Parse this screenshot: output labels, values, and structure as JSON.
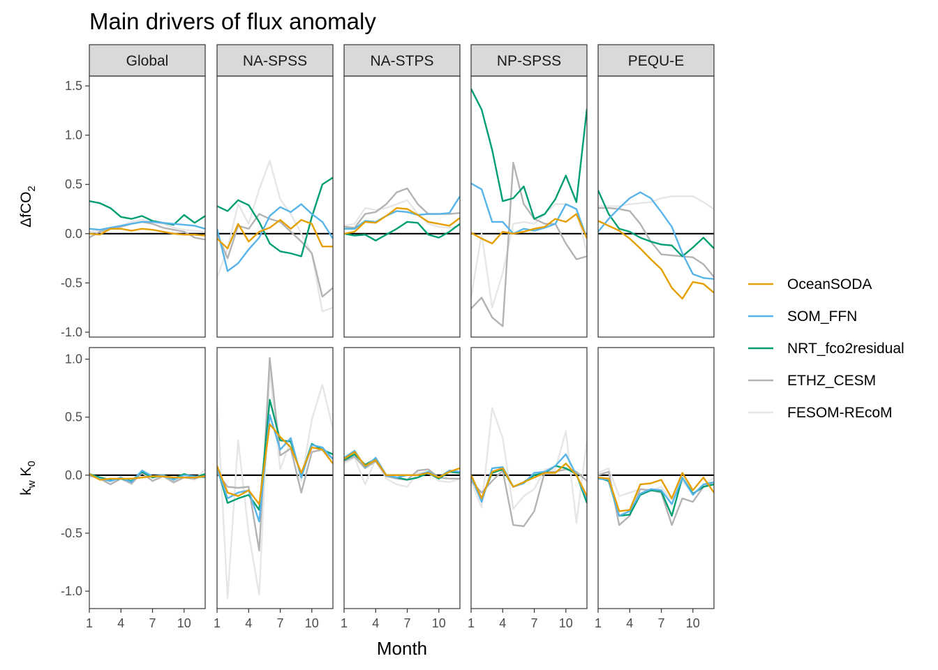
{
  "chart_data": {
    "type": "line",
    "title": "Main drivers of flux anomaly",
    "xlabel": "Month",
    "x": [
      1,
      2,
      3,
      4,
      5,
      6,
      7,
      8,
      9,
      10,
      11,
      12
    ],
    "xticks": [
      1,
      4,
      7,
      10
    ],
    "xlim": [
      1,
      12
    ],
    "panels": [
      "Global",
      "NA-SPSS",
      "NA-STPS",
      "NP-SPSS",
      "PEQU-E"
    ],
    "rows": [
      {
        "id": "dfco2",
        "ylabel": "ΔfCO",
        "ylabel_sub": "2",
        "ylim": [
          -1.05,
          1.6
        ],
        "yticks": [
          -1.0,
          -0.5,
          0.0,
          0.5,
          1.0,
          1.5
        ],
        "ytick_labels": [
          "-1.0",
          "-0.5",
          "0.0",
          "0.5",
          "1.0",
          "1.5"
        ]
      },
      {
        "id": "kwk0",
        "ylabel": "k",
        "ylabel_sub": "w",
        "ylabel2": " K",
        "ylabel_sub2": "0",
        "ylim": [
          -1.15,
          1.1
        ],
        "yticks": [
          -1.0,
          -0.5,
          0.0,
          0.5,
          1.0
        ],
        "ytick_labels": [
          "-1.0",
          "-0.5",
          "0.0",
          "0.5",
          "1.0"
        ]
      }
    ],
    "series_colors": {
      "OceanSODA": "#E69F00",
      "SOM_FFN": "#56B4E9",
      "NRT_fco2residual": "#009E73",
      "ETHZ_CESM": "#B3B3B3",
      "FESOM-REcoM": "#E6E6E6"
    },
    "legend": [
      "OceanSODA",
      "SOM_FFN",
      "NRT_fco2residual",
      "ETHZ_CESM",
      "FESOM-REcoM"
    ],
    "legend_position": "right",
    "data": {
      "dfco2": {
        "Global": {
          "OceanSODA": [
            0.0,
            -0.01,
            0.05,
            0.05,
            0.03,
            0.05,
            0.04,
            0.02,
            0.0,
            -0.01,
            -0.01,
            -0.02
          ],
          "SOM_FFN": [
            0.05,
            0.04,
            0.06,
            0.08,
            0.1,
            0.12,
            0.12,
            0.11,
            0.1,
            0.09,
            0.08,
            0.05
          ],
          "NRT_fco2residual": [
            0.33,
            0.31,
            0.26,
            0.17,
            0.15,
            0.18,
            0.13,
            0.11,
            0.09,
            0.19,
            0.11,
            0.18
          ],
          "ETHZ_CESM": [
            -0.04,
            0.02,
            0.05,
            0.07,
            0.1,
            0.12,
            0.1,
            0.06,
            0.04,
            0.02,
            -0.04,
            -0.06
          ],
          "FESOM-REcoM": [
            0.02,
            0.03,
            0.06,
            0.08,
            0.12,
            0.14,
            0.12,
            0.1,
            0.06,
            0.04,
            0.03,
            0.02
          ]
        },
        "NA-SPSS": {
          "OceanSODA": [
            -0.05,
            -0.15,
            0.1,
            -0.08,
            0.02,
            0.06,
            0.14,
            0.05,
            0.14,
            0.1,
            -0.13,
            -0.13
          ],
          "SOM_FFN": [
            0.05,
            -0.38,
            -0.3,
            -0.16,
            -0.04,
            0.18,
            0.27,
            0.22,
            0.3,
            0.2,
            0.12,
            -0.05
          ],
          "NRT_fco2residual": [
            0.28,
            0.23,
            0.34,
            0.29,
            0.12,
            -0.1,
            -0.18,
            -0.2,
            -0.23,
            0.17,
            0.5,
            0.57
          ],
          "ETHZ_CESM": [
            0.0,
            -0.25,
            0.08,
            0.05,
            0.2,
            0.15,
            0.12,
            0.02,
            -0.08,
            -0.2,
            -0.64,
            -0.55
          ],
          "FESOM-REcoM": [
            -0.45,
            -0.15,
            0.3,
            0.1,
            0.45,
            0.74,
            0.35,
            0.2,
            0.0,
            -0.2,
            -0.79,
            -0.75
          ]
        },
        "NA-STPS": {
          "OceanSODA": [
            0.0,
            0.02,
            0.12,
            0.11,
            0.18,
            0.26,
            0.25,
            0.19,
            0.12,
            0.1,
            0.08,
            0.16
          ],
          "SOM_FFN": [
            0.05,
            0.05,
            0.13,
            0.12,
            0.18,
            0.23,
            0.22,
            0.19,
            0.2,
            0.2,
            0.21,
            0.38
          ],
          "NRT_fco2residual": [
            0.0,
            -0.02,
            -0.01,
            -0.07,
            -0.01,
            0.05,
            0.12,
            0.11,
            -0.01,
            -0.04,
            0.02,
            0.1
          ],
          "ETHZ_CESM": [
            0.07,
            0.06,
            0.2,
            0.22,
            0.3,
            0.42,
            0.46,
            0.3,
            0.2,
            0.2,
            0.2,
            0.21
          ],
          "FESOM-REcoM": [
            0.08,
            0.1,
            0.26,
            0.24,
            0.26,
            0.3,
            0.34,
            0.2,
            0.1,
            0.07,
            0.06,
            0.08
          ]
        },
        "NP-SPSS": {
          "OceanSODA": [
            0.01,
            -0.05,
            -0.1,
            0.02,
            0.0,
            0.02,
            0.05,
            0.07,
            0.15,
            0.12,
            0.2,
            -0.05
          ],
          "SOM_FFN": [
            0.51,
            0.45,
            0.12,
            0.12,
            0.0,
            0.05,
            0.03,
            0.06,
            0.1,
            0.3,
            0.25,
            -0.05
          ],
          "NRT_fco2residual": [
            1.47,
            1.26,
            0.85,
            0.33,
            0.36,
            0.48,
            0.15,
            0.2,
            0.35,
            0.59,
            0.32,
            1.27
          ],
          "ETHZ_CESM": [
            -0.76,
            -0.65,
            -0.85,
            -0.94,
            0.72,
            0.3,
            0.15,
            0.1,
            0.1,
            -0.1,
            -0.26,
            -0.23
          ],
          "FESOM-REcoM": [
            -0.65,
            0.0,
            -0.75,
            -0.4,
            0.1,
            0.12,
            0.1,
            0.2,
            0.3,
            0.3,
            0.25,
            -0.2
          ]
        },
        "PEQU-E": {
          "OceanSODA": [
            0.13,
            0.08,
            0.03,
            -0.05,
            -0.15,
            -0.26,
            -0.36,
            -0.55,
            -0.66,
            -0.49,
            -0.51,
            -0.6
          ],
          "SOM_FFN": [
            0.02,
            0.15,
            0.26,
            0.36,
            0.42,
            0.36,
            0.22,
            0.07,
            -0.2,
            -0.41,
            -0.45,
            -0.46
          ],
          "NRT_fco2residual": [
            0.44,
            0.2,
            0.05,
            0.02,
            -0.04,
            -0.08,
            -0.11,
            -0.12,
            -0.23,
            -0.14,
            -0.04,
            -0.15
          ],
          "ETHZ_CESM": [
            0.26,
            0.26,
            0.25,
            0.23,
            0.1,
            -0.08,
            -0.21,
            -0.22,
            -0.23,
            -0.24,
            -0.31,
            -0.44
          ],
          "FESOM-REcoM": [
            0.28,
            0.28,
            0.28,
            0.3,
            0.31,
            0.32,
            0.36,
            0.38,
            0.38,
            0.38,
            0.32,
            0.25
          ]
        }
      },
      "kwk0": {
        "Global": {
          "OceanSODA": [
            0.01,
            -0.04,
            -0.03,
            -0.03,
            -0.03,
            -0.02,
            -0.01,
            -0.01,
            -0.02,
            -0.02,
            -0.02,
            -0.01
          ],
          "SOM_FFN": [
            0.0,
            -0.03,
            -0.05,
            -0.02,
            -0.06,
            0.04,
            -0.01,
            0.0,
            -0.04,
            0.0,
            -0.01,
            -0.02
          ],
          "NRT_fco2residual": [
            0.01,
            -0.02,
            -0.04,
            -0.03,
            -0.05,
            0.03,
            -0.02,
            0.0,
            -0.03,
            0.01,
            -0.02,
            0.01
          ],
          "ETHZ_CESM": [
            0.0,
            -0.03,
            -0.08,
            -0.03,
            -0.07,
            0.02,
            -0.05,
            -0.01,
            -0.06,
            -0.02,
            -0.03,
            0.0
          ],
          "FESOM-REcoM": [
            -0.01,
            -0.02,
            -0.06,
            -0.03,
            -0.08,
            0.03,
            -0.05,
            0.0,
            -0.07,
            -0.02,
            -0.04,
            0.05
          ]
        },
        "NA-SPSS": {
          "OceanSODA": [
            0.08,
            -0.15,
            -0.18,
            -0.13,
            -0.25,
            0.44,
            0.33,
            0.24,
            0.02,
            0.24,
            0.22,
            0.1
          ],
          "SOM_FFN": [
            0.06,
            -0.2,
            -0.15,
            -0.13,
            -0.4,
            0.52,
            0.22,
            0.32,
            -0.02,
            0.26,
            0.24,
            0.14
          ],
          "NRT_fco2residual": [
            0.07,
            -0.24,
            -0.2,
            -0.17,
            -0.3,
            0.65,
            0.3,
            0.29,
            0.0,
            0.27,
            0.22,
            0.18
          ],
          "ETHZ_CESM": [
            0.02,
            -0.1,
            -0.11,
            -0.1,
            -0.65,
            1.01,
            0.17,
            0.23,
            -0.15,
            0.2,
            0.22,
            0.14
          ],
          "FESOM-REcoM": [
            0.65,
            -1.06,
            0.3,
            -0.5,
            -1.03,
            0.9,
            0.05,
            0.3,
            -0.05,
            0.48,
            0.78,
            0.4
          ]
        },
        "NA-STPS": {
          "OceanSODA": [
            0.14,
            0.2,
            0.08,
            0.13,
            0.0,
            0.0,
            0.0,
            0.0,
            0.02,
            -0.02,
            0.03,
            0.06
          ],
          "SOM_FFN": [
            0.15,
            0.21,
            0.07,
            0.15,
            0.0,
            -0.02,
            0.0,
            0.0,
            0.03,
            -0.02,
            0.04,
            0.03
          ],
          "NRT_fco2residual": [
            0.13,
            0.18,
            0.09,
            0.14,
            0.0,
            -0.02,
            -0.04,
            -0.02,
            0.02,
            -0.03,
            0.03,
            0.02
          ],
          "ETHZ_CESM": [
            0.12,
            0.16,
            0.06,
            0.12,
            -0.01,
            -0.03,
            -0.04,
            0.04,
            0.05,
            -0.02,
            -0.03,
            -0.03
          ],
          "FESOM-REcoM": [
            0.1,
            0.15,
            -0.08,
            0.14,
            -0.03,
            -0.08,
            -0.1,
            0.02,
            0.02,
            -0.05,
            -0.06,
            -0.03
          ]
        },
        "NP-SPSS": {
          "OceanSODA": [
            0.0,
            -0.2,
            0.03,
            0.06,
            -0.1,
            -0.06,
            -0.02,
            0.02,
            0.02,
            0.1,
            0.0,
            -0.18
          ],
          "SOM_FFN": [
            -0.01,
            -0.23,
            0.06,
            0.07,
            -0.1,
            -0.07,
            0.02,
            0.03,
            0.08,
            0.18,
            0.0,
            -0.2
          ],
          "NRT_fco2residual": [
            0.0,
            -0.2,
            0.02,
            0.05,
            -0.1,
            -0.06,
            0.0,
            0.02,
            0.08,
            0.06,
            0.01,
            -0.24
          ],
          "ETHZ_CESM": [
            -0.05,
            -0.15,
            -0.05,
            0.04,
            -0.43,
            -0.44,
            -0.31,
            0.03,
            0.03,
            0.05,
            0.03,
            -0.05
          ],
          "FESOM-REcoM": [
            -0.05,
            -0.28,
            0.58,
            0.32,
            -0.29,
            -0.18,
            -0.12,
            0.05,
            0.05,
            0.38,
            -0.41,
            0.3
          ]
        },
        "PEQU-E": {
          "OceanSODA": [
            -0.02,
            -0.03,
            -0.31,
            -0.3,
            -0.08,
            -0.07,
            -0.04,
            -0.2,
            0.02,
            -0.13,
            -0.02,
            -0.15
          ],
          "SOM_FFN": [
            -0.03,
            -0.04,
            -0.35,
            -0.31,
            -0.16,
            -0.12,
            -0.13,
            -0.25,
            -0.02,
            -0.17,
            -0.08,
            -0.06
          ],
          "NRT_fco2residual": [
            -0.02,
            -0.05,
            -0.35,
            -0.34,
            -0.17,
            -0.13,
            -0.14,
            -0.35,
            -0.02,
            -0.16,
            -0.1,
            -0.08
          ],
          "ETHZ_CESM": [
            0.0,
            0.03,
            -0.43,
            -0.35,
            -0.12,
            -0.13,
            -0.15,
            -0.43,
            -0.2,
            -0.23,
            -0.1,
            -0.06
          ],
          "FESOM-REcoM": [
            0.02,
            0.06,
            -0.18,
            -0.15,
            -0.12,
            -0.14,
            -0.1,
            -0.22,
            -0.05,
            -0.16,
            -0.09,
            -0.02
          ]
        }
      }
    }
  }
}
